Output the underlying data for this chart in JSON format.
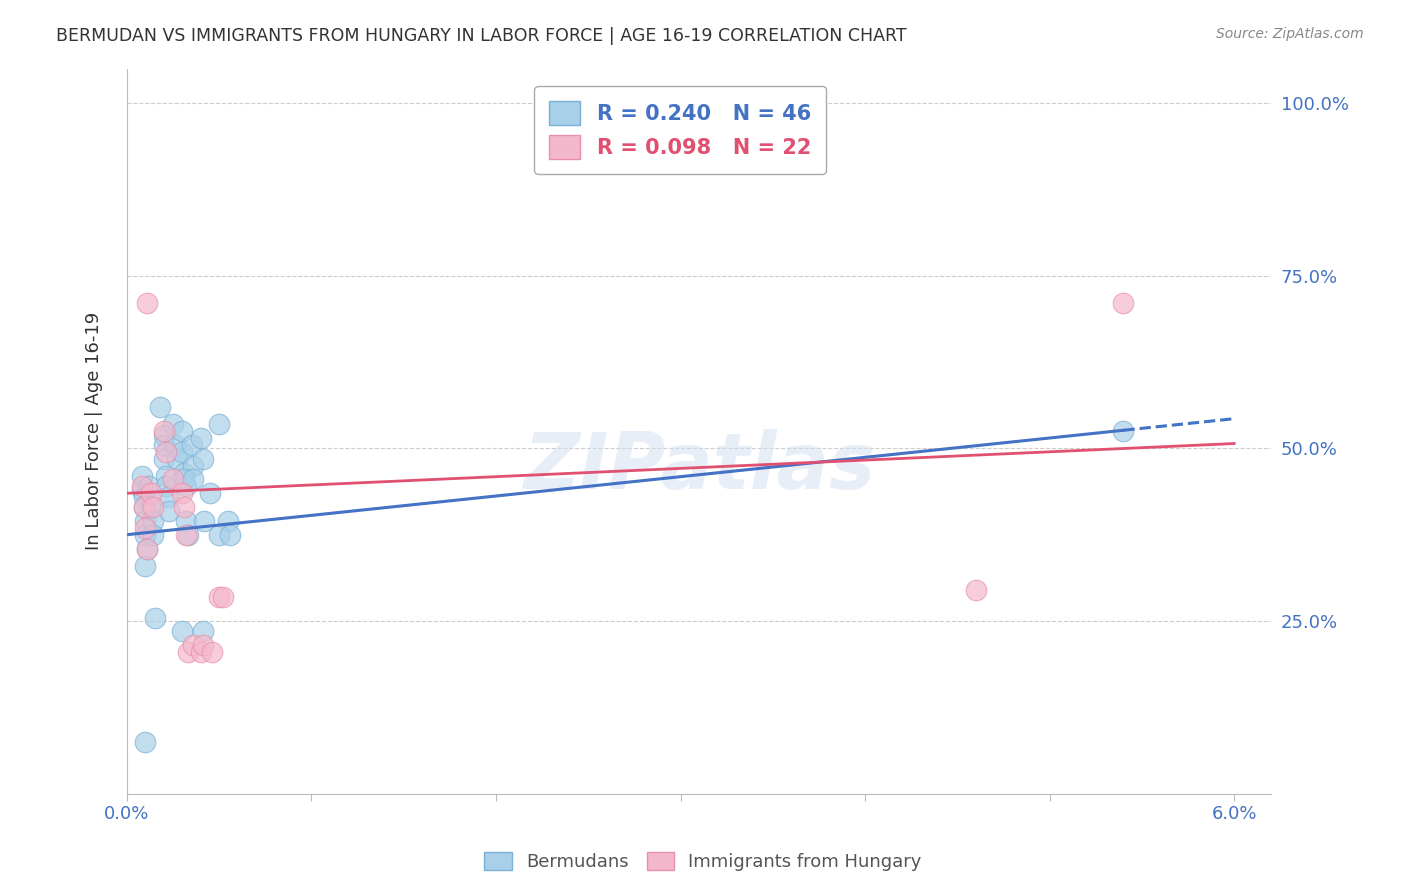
{
  "title": "BERMUDAN VS IMMIGRANTS FROM HUNGARY IN LABOR FORCE | AGE 16-19 CORRELATION CHART",
  "source": "Source: ZipAtlas.com",
  "ylabel": "In Labor Force | Age 16-19",
  "xlim": [
    0.0,
    0.062
  ],
  "ylim": [
    0.0,
    1.05
  ],
  "xticks": [
    0.0,
    0.01,
    0.02,
    0.03,
    0.04,
    0.05,
    0.06
  ],
  "xticklabels": [
    "0.0%",
    "",
    "",
    "",
    "",
    "",
    "6.0%"
  ],
  "yticks": [
    0.0,
    0.25,
    0.5,
    0.75,
    1.0
  ],
  "yticklabels": [
    "",
    "25.0%",
    "50.0%",
    "75.0%",
    "100.0%"
  ],
  "blue_R": 0.24,
  "blue_N": 46,
  "pink_R": 0.098,
  "pink_N": 22,
  "blue_color": "#a8d0e8",
  "pink_color": "#f4b8cc",
  "blue_edge_color": "#7ab0d4",
  "pink_edge_color": "#e890aa",
  "blue_line_color": "#4472c4",
  "pink_line_color": "#e05070",
  "blue_scatter": [
    [
      0.0008,
      0.44
    ],
    [
      0.0008,
      0.46
    ],
    [
      0.0009,
      0.43
    ],
    [
      0.0009,
      0.415
    ],
    [
      0.001,
      0.395
    ],
    [
      0.001,
      0.375
    ],
    [
      0.0011,
      0.355
    ],
    [
      0.0012,
      0.445
    ],
    [
      0.0013,
      0.415
    ],
    [
      0.0014,
      0.395
    ],
    [
      0.0014,
      0.375
    ],
    [
      0.0018,
      0.56
    ],
    [
      0.002,
      0.52
    ],
    [
      0.002,
      0.505
    ],
    [
      0.002,
      0.485
    ],
    [
      0.0021,
      0.46
    ],
    [
      0.0021,
      0.445
    ],
    [
      0.0022,
      0.43
    ],
    [
      0.0023,
      0.41
    ],
    [
      0.0025,
      0.535
    ],
    [
      0.0026,
      0.505
    ],
    [
      0.0027,
      0.485
    ],
    [
      0.003,
      0.525
    ],
    [
      0.003,
      0.495
    ],
    [
      0.0031,
      0.465
    ],
    [
      0.0032,
      0.445
    ],
    [
      0.0032,
      0.395
    ],
    [
      0.0033,
      0.375
    ],
    [
      0.0035,
      0.505
    ],
    [
      0.0036,
      0.475
    ],
    [
      0.004,
      0.515
    ],
    [
      0.0041,
      0.485
    ],
    [
      0.0042,
      0.395
    ],
    [
      0.005,
      0.535
    ],
    [
      0.0055,
      0.395
    ],
    [
      0.054,
      0.525
    ],
    [
      0.001,
      0.33
    ],
    [
      0.001,
      0.075
    ],
    [
      0.0015,
      0.255
    ],
    [
      0.003,
      0.235
    ],
    [
      0.0031,
      0.455
    ],
    [
      0.0036,
      0.455
    ],
    [
      0.0041,
      0.235
    ],
    [
      0.0045,
      0.435
    ],
    [
      0.005,
      0.375
    ],
    [
      0.0056,
      0.375
    ]
  ],
  "pink_scatter": [
    [
      0.0008,
      0.445
    ],
    [
      0.0009,
      0.415
    ],
    [
      0.001,
      0.385
    ],
    [
      0.0011,
      0.355
    ],
    [
      0.0013,
      0.435
    ],
    [
      0.0014,
      0.415
    ],
    [
      0.002,
      0.525
    ],
    [
      0.0021,
      0.495
    ],
    [
      0.0025,
      0.455
    ],
    [
      0.003,
      0.435
    ],
    [
      0.0031,
      0.415
    ],
    [
      0.0032,
      0.375
    ],
    [
      0.0033,
      0.205
    ],
    [
      0.0036,
      0.215
    ],
    [
      0.004,
      0.205
    ],
    [
      0.0041,
      0.215
    ],
    [
      0.0046,
      0.205
    ],
    [
      0.005,
      0.285
    ],
    [
      0.0052,
      0.285
    ],
    [
      0.054,
      0.71
    ],
    [
      0.046,
      0.295
    ],
    [
      0.0011,
      0.71
    ]
  ],
  "blue_line_x": [
    0.0,
    0.057
  ],
  "blue_line_solid_end": 0.054,
  "pink_line_x": [
    0.0,
    0.057
  ],
  "blue_intercept": 0.375,
  "blue_slope": 2.8,
  "pink_intercept": 0.435,
  "pink_slope": 1.2,
  "watermark": "ZIPatlas",
  "grid_color": "#cccccc",
  "bg_color": "#ffffff",
  "title_color": "#333333",
  "tick_color": "#4472c4",
  "source_color": "#888888"
}
